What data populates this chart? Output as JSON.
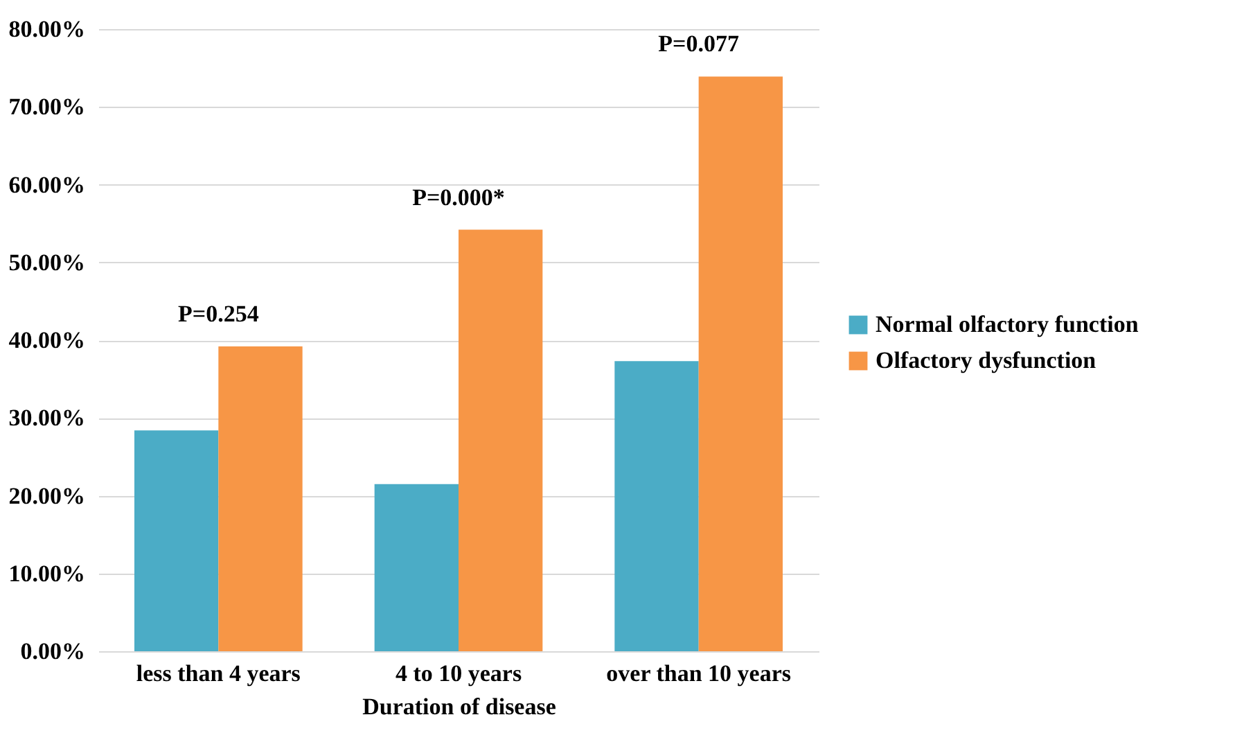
{
  "chart_data": {
    "type": "bar",
    "xlabel": "Duration of disease",
    "categories": [
      "less than 4 years",
      "4 to 10 years",
      "over than 10 years"
    ],
    "series": [
      {
        "name": "Normal olfactory function",
        "color": "#4bacc6",
        "values": [
          28.4,
          21.5,
          37.3
        ]
      },
      {
        "name": "Olfactory dysfunction",
        "color": "#f79646",
        "values": [
          39.2,
          54.2,
          73.9
        ]
      }
    ],
    "ylim": [
      0,
      80
    ],
    "yticks": [
      {
        "value": 0,
        "label": "0.00%"
      },
      {
        "value": 10,
        "label": "10.00%"
      },
      {
        "value": 20,
        "label": "20.00%"
      },
      {
        "value": 30,
        "label": "30.00%"
      },
      {
        "value": 40,
        "label": "40.00%"
      },
      {
        "value": 50,
        "label": "50.00%"
      },
      {
        "value": 60,
        "label": "60.00%"
      },
      {
        "value": 70,
        "label": "70.00%"
      },
      {
        "value": 80,
        "label": "80.00%"
      }
    ],
    "grid": "y",
    "legend": "right",
    "annotations": [
      "P=0.254",
      "P=0.000*",
      "P=0.077"
    ]
  }
}
